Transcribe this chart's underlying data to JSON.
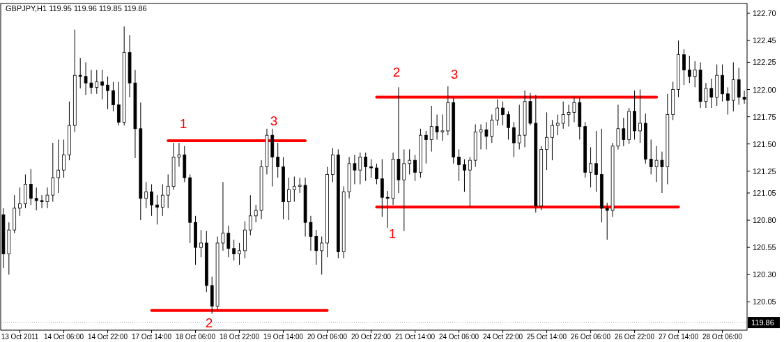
{
  "chart_data": {
    "type": "candlestick",
    "title": "GBPJPY,H1 119.95 119.96 119.85 119.86",
    "categories": [
      null,
      null,
      null,
      "13 Oct 2011",
      null,
      null,
      null,
      null,
      null,
      null,
      null,
      "14 Oct 06:00",
      null,
      null,
      null,
      null,
      null,
      null,
      null,
      "14 Oct 22:00",
      null,
      null,
      null,
      null,
      null,
      null,
      null,
      "17 Oct 14:00",
      null,
      null,
      null,
      null,
      null,
      null,
      null,
      "18 Oct 06:00",
      null,
      null,
      null,
      null,
      null,
      null,
      null,
      "18 Oct 22:00",
      null,
      null,
      null,
      null,
      null,
      null,
      null,
      "19 Oct 14:00",
      null,
      null,
      null,
      null,
      null,
      null,
      null,
      "20 Oct 06:00",
      null,
      null,
      null,
      null,
      null,
      null,
      null,
      "20 Oct 22:00",
      null,
      null,
      null,
      null,
      null,
      null,
      null,
      "21 Oct 14:00",
      null,
      null,
      null,
      null,
      null,
      null,
      null,
      "24 Oct 06:00",
      null,
      null,
      null,
      null,
      null,
      null,
      null,
      "24 Oct 22:00",
      null,
      null,
      null,
      null,
      null,
      null,
      null,
      "25 Oct 14:00",
      null,
      null,
      null,
      null,
      null,
      null,
      null,
      "26 Oct 06:00",
      null,
      null,
      null,
      null,
      null,
      null,
      null,
      "26 Oct 22:00",
      null,
      null,
      null,
      null,
      null,
      null,
      null,
      "27 Oct 14:00",
      null,
      null,
      null,
      null,
      null,
      null,
      null,
      "28 Oct 06:00",
      null,
      null,
      null,
      null
    ],
    "ohlc": [
      [
        120.85,
        120.91,
        120.36,
        120.49
      ],
      [
        120.49,
        120.78,
        120.3,
        120.71
      ],
      [
        120.71,
        121.03,
        120.68,
        120.91
      ],
      [
        120.91,
        121.1,
        120.84,
        120.95
      ],
      [
        120.95,
        121.22,
        120.91,
        121.13
      ],
      [
        121.13,
        121.27,
        120.94,
        121.0
      ],
      [
        121.0,
        121.1,
        120.89,
        120.98
      ],
      [
        120.98,
        121.03,
        120.91,
        120.97
      ],
      [
        120.97,
        121.1,
        120.91,
        121.03
      ],
      [
        121.03,
        121.51,
        120.97,
        121.19
      ],
      [
        121.19,
        121.54,
        121.05,
        121.26
      ],
      [
        121.26,
        121.54,
        121.19,
        121.4
      ],
      [
        121.4,
        121.89,
        121.35,
        121.67
      ],
      [
        121.67,
        122.55,
        121.61,
        122.13
      ],
      [
        122.13,
        122.29,
        122.01,
        122.12
      ],
      [
        122.12,
        122.25,
        121.95,
        122.06
      ],
      [
        122.06,
        122.18,
        121.96,
        122.02
      ],
      [
        122.02,
        122.18,
        121.96,
        122.07
      ],
      [
        122.07,
        122.18,
        121.91,
        122.04
      ],
      [
        122.04,
        122.12,
        121.82,
        121.99
      ],
      [
        121.99,
        122.07,
        121.8,
        121.86
      ],
      [
        121.86,
        122.07,
        121.67,
        121.7
      ],
      [
        121.7,
        122.58,
        121.67,
        122.34
      ],
      [
        122.34,
        122.5,
        121.93,
        122.06
      ],
      [
        122.06,
        122.18,
        121.37,
        121.64
      ],
      [
        121.64,
        121.88,
        120.8,
        121.0
      ],
      [
        121.0,
        121.15,
        120.91,
        121.06
      ],
      [
        121.06,
        121.13,
        120.84,
        120.94
      ],
      [
        120.94,
        121.03,
        120.76,
        120.92
      ],
      [
        120.92,
        121.13,
        120.84,
        121.03
      ],
      [
        121.03,
        121.22,
        120.91,
        121.11
      ],
      [
        121.11,
        121.51,
        121.08,
        121.38
      ],
      [
        121.38,
        121.51,
        121.29,
        121.4
      ],
      [
        121.4,
        121.48,
        121.15,
        121.19
      ],
      [
        121.19,
        121.22,
        120.59,
        120.78
      ],
      [
        120.78,
        120.84,
        120.39,
        120.55
      ],
      [
        120.55,
        120.71,
        120.46,
        120.59
      ],
      [
        120.59,
        120.7,
        120.14,
        120.2
      ],
      [
        120.2,
        120.28,
        119.94,
        120.01
      ],
      [
        120.01,
        120.65,
        119.98,
        120.59
      ],
      [
        120.59,
        121.15,
        120.52,
        120.68
      ],
      [
        120.68,
        120.75,
        120.46,
        120.54
      ],
      [
        120.54,
        120.62,
        120.43,
        120.49
      ],
      [
        120.49,
        120.59,
        120.39,
        120.52
      ],
      [
        120.52,
        120.79,
        120.45,
        120.71
      ],
      [
        120.71,
        121.03,
        120.66,
        120.84
      ],
      [
        120.84,
        120.94,
        120.78,
        120.89
      ],
      [
        120.89,
        121.35,
        120.81,
        121.29
      ],
      [
        121.29,
        121.64,
        121.22,
        121.58
      ],
      [
        121.58,
        121.64,
        121.11,
        121.38
      ],
      [
        121.38,
        121.51,
        121.19,
        121.29
      ],
      [
        121.29,
        121.38,
        120.81,
        120.97
      ],
      [
        120.97,
        121.19,
        120.8,
        121.08
      ],
      [
        121.08,
        121.2,
        120.97,
        121.11
      ],
      [
        121.11,
        121.19,
        121.05,
        121.12
      ],
      [
        121.12,
        121.19,
        120.65,
        120.78
      ],
      [
        120.78,
        120.84,
        120.52,
        120.65
      ],
      [
        120.65,
        120.71,
        120.39,
        120.52
      ],
      [
        120.52,
        120.65,
        120.3,
        120.59
      ],
      [
        120.59,
        121.29,
        120.46,
        121.22
      ],
      [
        121.22,
        121.46,
        121.15,
        121.4
      ],
      [
        121.4,
        121.45,
        120.45,
        120.51
      ],
      [
        120.51,
        121.11,
        120.45,
        121.06
      ],
      [
        121.06,
        121.38,
        121.0,
        121.32
      ],
      [
        121.32,
        121.4,
        121.13,
        121.26
      ],
      [
        121.26,
        121.42,
        121.13,
        121.38
      ],
      [
        121.38,
        121.42,
        121.16,
        121.29
      ],
      [
        121.29,
        121.36,
        121.19,
        121.28
      ],
      [
        121.28,
        121.32,
        121.13,
        121.18
      ],
      [
        121.18,
        121.36,
        120.83,
        121.01
      ],
      [
        121.01,
        121.07,
        120.73,
        121.0
      ],
      [
        121.0,
        121.42,
        120.94,
        121.36
      ],
      [
        121.36,
        122.02,
        121.05,
        121.17
      ],
      [
        121.17,
        121.45,
        120.7,
        121.32
      ],
      [
        121.32,
        121.45,
        121.22,
        121.35
      ],
      [
        121.35,
        121.4,
        121.16,
        121.24
      ],
      [
        121.24,
        121.64,
        121.19,
        121.58
      ],
      [
        121.58,
        121.62,
        121.32,
        121.54
      ],
      [
        121.54,
        121.85,
        121.43,
        121.66
      ],
      [
        121.66,
        121.77,
        121.54,
        121.61
      ],
      [
        121.61,
        121.77,
        121.53,
        121.62
      ],
      [
        121.62,
        122.03,
        121.58,
        121.88
      ],
      [
        121.88,
        121.93,
        121.32,
        121.38
      ],
      [
        121.38,
        121.45,
        121.16,
        121.31
      ],
      [
        121.31,
        121.36,
        121.06,
        121.26
      ],
      [
        121.26,
        121.38,
        120.92,
        121.35
      ],
      [
        121.35,
        121.68,
        121.29,
        121.61
      ],
      [
        121.61,
        121.68,
        121.45,
        121.63
      ],
      [
        121.63,
        121.7,
        121.45,
        121.57
      ],
      [
        121.57,
        121.77,
        121.51,
        121.72
      ],
      [
        121.72,
        121.91,
        121.67,
        121.83
      ],
      [
        121.83,
        121.89,
        121.67,
        121.77
      ],
      [
        121.77,
        121.8,
        121.54,
        121.65
      ],
      [
        121.65,
        121.7,
        121.38,
        121.51
      ],
      [
        121.51,
        121.86,
        121.45,
        121.58
      ],
      [
        121.58,
        121.99,
        121.47,
        121.89
      ],
      [
        121.89,
        121.97,
        121.67,
        121.69
      ],
      [
        121.69,
        121.95,
        120.87,
        120.93
      ],
      [
        120.93,
        121.48,
        120.89,
        121.45
      ],
      [
        121.45,
        121.79,
        121.26,
        121.56
      ],
      [
        121.56,
        121.72,
        121.35,
        121.67
      ],
      [
        121.67,
        121.77,
        121.58,
        121.69
      ],
      [
        121.69,
        121.89,
        121.64,
        121.77
      ],
      [
        121.77,
        121.86,
        121.66,
        121.79
      ],
      [
        121.79,
        121.93,
        121.7,
        121.88
      ],
      [
        121.88,
        121.93,
        121.54,
        121.66
      ],
      [
        121.66,
        121.7,
        121.19,
        121.24
      ],
      [
        121.24,
        121.47,
        121.1,
        121.32
      ],
      [
        121.32,
        121.62,
        121.06,
        121.22
      ],
      [
        121.22,
        121.64,
        120.78,
        120.91
      ],
      [
        120.91,
        120.96,
        120.62,
        120.89
      ],
      [
        120.89,
        121.51,
        120.83,
        121.48
      ],
      [
        121.48,
        121.86,
        121.45,
        121.64
      ],
      [
        121.64,
        121.74,
        121.48,
        121.54
      ],
      [
        121.54,
        121.83,
        121.5,
        121.8
      ],
      [
        121.8,
        121.99,
        121.54,
        121.62
      ],
      [
        121.62,
        122.0,
        121.51,
        121.69
      ],
      [
        121.69,
        121.78,
        121.32,
        121.36
      ],
      [
        121.36,
        121.54,
        121.22,
        121.29
      ],
      [
        121.29,
        121.48,
        121.15,
        121.35
      ],
      [
        121.35,
        121.43,
        121.05,
        121.29
      ],
      [
        121.29,
        121.96,
        121.13,
        121.77
      ],
      [
        121.77,
        122.07,
        121.72,
        122.0
      ],
      [
        122.0,
        122.45,
        121.93,
        122.32
      ],
      [
        122.32,
        122.37,
        122.04,
        122.18
      ],
      [
        122.18,
        122.31,
        122.06,
        122.12
      ],
      [
        122.12,
        122.26,
        122.02,
        122.18
      ],
      [
        122.18,
        122.25,
        121.83,
        121.89
      ],
      [
        121.89,
        122.06,
        121.83,
        122.01
      ],
      [
        122.01,
        122.1,
        121.83,
        121.93
      ],
      [
        121.93,
        122.23,
        121.85,
        122.13
      ],
      [
        122.13,
        122.23,
        121.89,
        121.96
      ],
      [
        121.96,
        122.02,
        121.77,
        121.9
      ],
      [
        121.9,
        122.25,
        121.8,
        122.09
      ],
      [
        122.09,
        122.2,
        121.86,
        121.93
      ],
      [
        121.93,
        121.99,
        121.87,
        121.91
      ]
    ],
    "series": [
      {
        "type": "line",
        "color": "#ff0000",
        "values": [
          null,
          null,
          null,
          null,
          null,
          null,
          null,
          null,
          null,
          null,
          null,
          null,
          null,
          null,
          null,
          null,
          null,
          null,
          null,
          null,
          null,
          null,
          null,
          null,
          null,
          null,
          null,
          null,
          null,
          null,
          121.53,
          121.53,
          121.53,
          121.53,
          121.53,
          121.53,
          121.53,
          121.53,
          121.53,
          121.53,
          121.53,
          121.53,
          121.53,
          121.53,
          121.53,
          121.53,
          121.53,
          121.53,
          121.53,
          121.53,
          121.53,
          121.53,
          121.53,
          121.53,
          121.53,
          121.53,
          null,
          null,
          null,
          null,
          null,
          null,
          null,
          null,
          null,
          null,
          null,
          null,
          null,
          null,
          null,
          null,
          null,
          null,
          null,
          null,
          null,
          null,
          null,
          null,
          null,
          null,
          null,
          null,
          null,
          null,
          null,
          null,
          null,
          null,
          null,
          null,
          null,
          null,
          null,
          null,
          null,
          null,
          null,
          null,
          null,
          null,
          null,
          null,
          null,
          null,
          null,
          null,
          null,
          null,
          null,
          null,
          null,
          null,
          null,
          null,
          null,
          null,
          null,
          null,
          null,
          null,
          null,
          null,
          null,
          null,
          null,
          null,
          null,
          null,
          null,
          null,
          null,
          null,
          null,
          null
        ]
      },
      {
        "type": "line",
        "color": "#ff0000",
        "values": [
          null,
          null,
          null,
          null,
          null,
          null,
          null,
          null,
          null,
          null,
          null,
          null,
          null,
          null,
          null,
          null,
          null,
          null,
          null,
          null,
          null,
          null,
          null,
          null,
          null,
          null,
          null,
          119.97,
          119.97,
          119.97,
          119.97,
          119.97,
          119.97,
          119.97,
          119.97,
          119.97,
          119.97,
          119.97,
          119.97,
          119.97,
          119.97,
          119.97,
          119.97,
          119.97,
          119.97,
          119.97,
          119.97,
          119.97,
          119.97,
          119.97,
          119.97,
          119.97,
          119.97,
          119.97,
          119.97,
          119.97,
          119.97,
          119.97,
          119.97,
          119.97,
          null,
          null,
          null,
          null,
          null,
          null,
          null,
          null,
          null,
          null,
          null,
          null,
          null,
          null,
          null,
          null,
          null,
          null,
          null,
          null,
          null,
          null,
          null,
          null,
          null,
          null,
          null,
          null,
          null,
          null,
          null,
          null,
          null,
          null,
          null,
          null,
          null,
          null,
          null,
          null,
          null,
          null,
          null,
          null,
          null,
          null,
          null,
          null,
          null,
          null,
          null,
          null,
          null,
          null,
          null,
          null,
          null,
          null,
          null,
          null,
          null,
          null,
          null,
          null,
          null,
          null,
          null,
          null,
          null,
          null,
          null,
          null,
          null,
          null,
          null,
          null
        ]
      },
      {
        "type": "line",
        "color": "#ff0000",
        "values": [
          null,
          null,
          null,
          null,
          null,
          null,
          null,
          null,
          null,
          null,
          null,
          null,
          null,
          null,
          null,
          null,
          null,
          null,
          null,
          null,
          null,
          null,
          null,
          null,
          null,
          null,
          null,
          null,
          null,
          null,
          null,
          null,
          null,
          null,
          null,
          null,
          null,
          null,
          null,
          null,
          null,
          null,
          null,
          null,
          null,
          null,
          null,
          null,
          null,
          null,
          null,
          null,
          null,
          null,
          null,
          null,
          null,
          null,
          null,
          null,
          null,
          null,
          null,
          null,
          null,
          null,
          null,
          null,
          121.93,
          121.93,
          121.93,
          121.93,
          121.93,
          121.93,
          121.93,
          121.93,
          121.93,
          121.93,
          121.93,
          121.93,
          121.93,
          121.93,
          121.93,
          121.93,
          121.93,
          121.93,
          121.93,
          121.93,
          121.93,
          121.93,
          121.93,
          121.93,
          121.93,
          121.93,
          121.93,
          121.93,
          121.93,
          121.93,
          121.93,
          121.93,
          121.93,
          121.93,
          121.93,
          121.93,
          121.93,
          121.93,
          121.93,
          121.93,
          121.93,
          121.93,
          121.93,
          121.93,
          121.93,
          121.93,
          121.93,
          121.93,
          121.93,
          121.93,
          121.93,
          121.93,
          null,
          null,
          null,
          null,
          null,
          null,
          null,
          null,
          null,
          null,
          null,
          null,
          null,
          null,
          null,
          null
        ]
      },
      {
        "type": "line",
        "color": "#ff0000",
        "values": [
          null,
          null,
          null,
          null,
          null,
          null,
          null,
          null,
          null,
          null,
          null,
          null,
          null,
          null,
          null,
          null,
          null,
          null,
          null,
          null,
          null,
          null,
          null,
          null,
          null,
          null,
          null,
          null,
          null,
          null,
          null,
          null,
          null,
          null,
          null,
          null,
          null,
          null,
          null,
          null,
          null,
          null,
          null,
          null,
          null,
          null,
          null,
          null,
          null,
          null,
          null,
          null,
          null,
          null,
          null,
          null,
          null,
          null,
          null,
          null,
          null,
          null,
          null,
          null,
          null,
          null,
          null,
          null,
          120.92,
          120.92,
          120.92,
          120.92,
          120.92,
          120.92,
          120.92,
          120.92,
          120.92,
          120.92,
          120.92,
          120.92,
          120.92,
          120.92,
          120.92,
          120.92,
          120.92,
          120.92,
          120.92,
          120.92,
          120.92,
          120.92,
          120.92,
          120.92,
          120.92,
          120.92,
          120.92,
          120.92,
          120.92,
          120.92,
          120.92,
          120.92,
          120.92,
          120.92,
          120.92,
          120.92,
          120.92,
          120.92,
          120.92,
          120.92,
          120.92,
          120.92,
          120.92,
          120.92,
          120.92,
          120.92,
          120.92,
          120.92,
          120.92,
          120.92,
          120.92,
          120.92,
          120.92,
          120.92,
          120.92,
          120.92,
          null,
          null,
          null,
          null,
          null,
          null,
          null,
          null,
          null,
          null,
          null,
          null
        ]
      }
    ],
    "annotations": [
      "1",
      "3",
      "2",
      "2",
      "3",
      "1"
    ],
    "ylim": [
      119.79,
      122.79
    ],
    "yticks": [
      120.05,
      {
        "value": 120.3,
        "label": "120.30"
      },
      120.55,
      {
        "value": 120.8,
        "label": "120.80"
      },
      121.05,
      121.25,
      {
        "value": 121.5,
        "label": "121.50"
      },
      121.75,
      {
        "value": 122,
        "label": "122.00"
      },
      122.25,
      122.45,
      {
        "value": 122.7,
        "label": "122.70"
      }
    ],
    "ref_lines": [
      {
        "axis": "y",
        "value": 119.86,
        "label": "119.86",
        "color": "#a0a0a0",
        "line_style": "dotted"
      }
    ]
  }
}
